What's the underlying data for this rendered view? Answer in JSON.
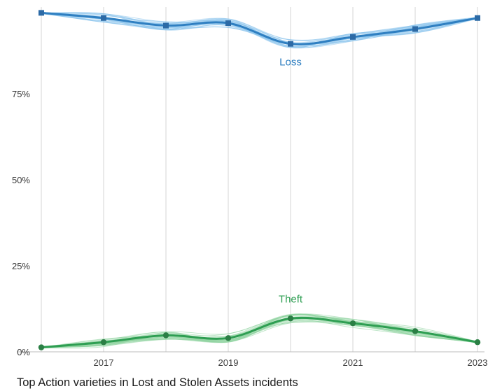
{
  "caption": "Top Action varieties in Lost and Stolen Assets incidents",
  "chart_data": {
    "type": "line",
    "title": "Top Action varieties in Lost and Stolen Assets incidents",
    "xlabel": "",
    "ylabel": "",
    "x": [
      2016,
      2017,
      2018,
      2019,
      2020,
      2021,
      2022,
      2023
    ],
    "x_tick_values": [
      2017,
      2019,
      2021,
      2023
    ],
    "x_tick_labels": [
      "2017",
      "2019",
      "2021",
      "2023"
    ],
    "y_tick_values": [
      0,
      25,
      50,
      75
    ],
    "y_tick_labels": [
      "0%",
      "25%",
      "50%",
      "75%"
    ],
    "xlim": [
      2016,
      2023
    ],
    "ylim": [
      0,
      99
    ],
    "grid": "vertical",
    "legend": "none (direct labels)",
    "series": [
      {
        "name": "Loss",
        "color": "#2f7fc1",
        "uncertainty_color": "#8cc4ec",
        "marker": "square",
        "values": [
          98.5,
          97.0,
          94.8,
          95.5,
          89.5,
          91.5,
          93.8,
          97.0
        ]
      },
      {
        "name": "Theft",
        "color": "#2e9e52",
        "uncertainty_color": "#8fd3a0",
        "marker": "circle",
        "values": [
          1.3,
          2.8,
          4.8,
          4.0,
          9.7,
          8.3,
          6.0,
          2.8
        ]
      }
    ]
  }
}
